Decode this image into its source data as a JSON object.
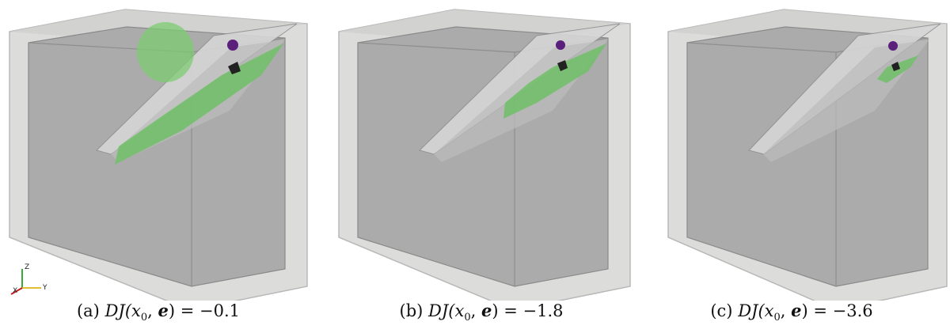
{
  "figure": {
    "panels": [
      {
        "tag": "(a)",
        "math_lhs": "DJ(x",
        "sub": "0",
        "comma": ", ",
        "vec": "e",
        "rhs": ") = −0.1",
        "has_blob": true,
        "shell_size": "large"
      },
      {
        "tag": "(b)",
        "math_lhs": "DJ(x",
        "sub": "0",
        "comma": ", ",
        "vec": "e",
        "rhs": ") = −1.8",
        "has_blob": false,
        "shell_size": "medium"
      },
      {
        "tag": "(c)",
        "math_lhs": "DJ(x",
        "sub": "0",
        "comma": ", ",
        "vec": "e",
        "rhs": ") = −3.6",
        "has_blob": false,
        "shell_size": "small"
      }
    ],
    "axis_triad": {
      "z_label": "Z",
      "x_label": "X",
      "y_label": "Y"
    },
    "colors": {
      "box_outer": "#d4d4d2",
      "box_inner": "#a7a7a7",
      "fault_plane": "#c3c3c3",
      "green_shell": "#6fbf66",
      "purple_marker": "#5b1f7c",
      "dark_marker": "#222222"
    }
  }
}
